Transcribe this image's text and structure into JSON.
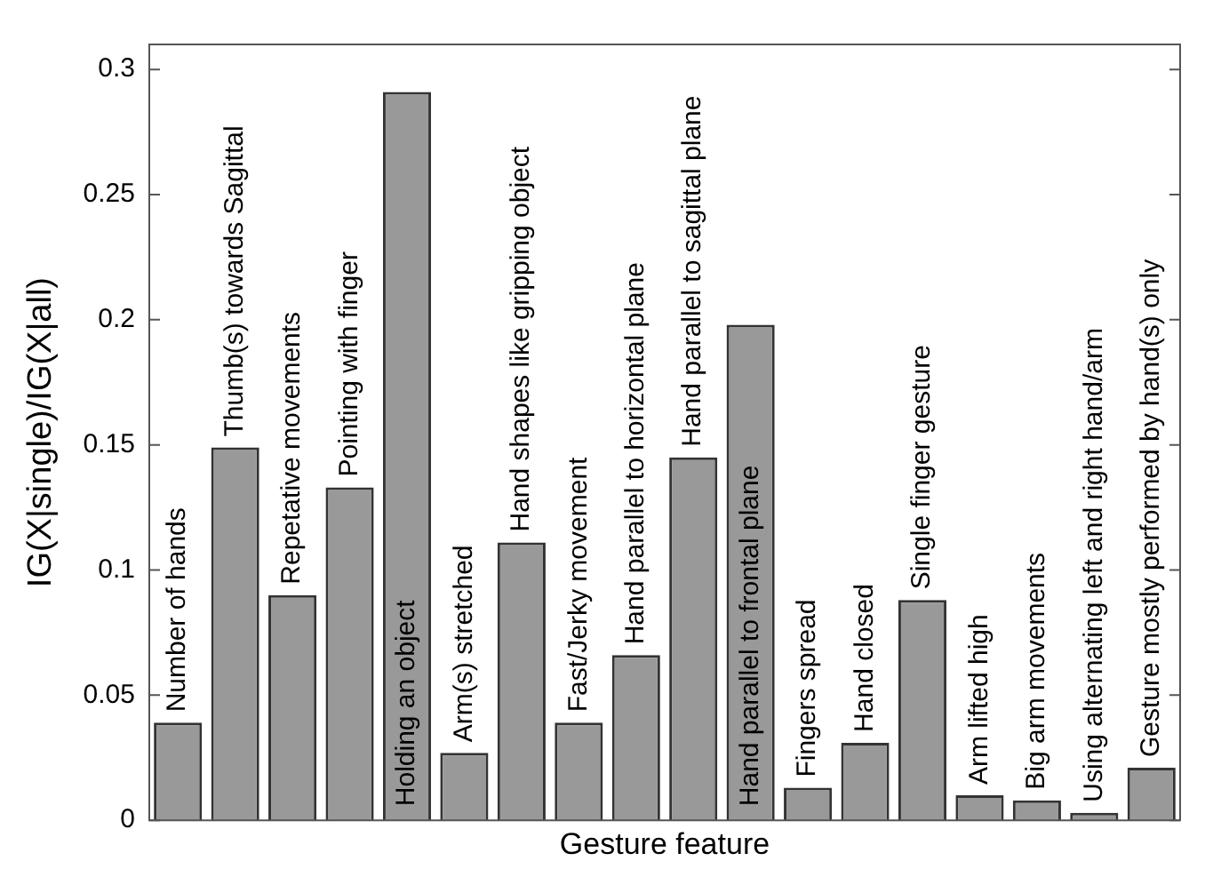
{
  "chart_data": {
    "type": "bar",
    "xlabel": "Gesture feature",
    "ylabel": "IG(X|single)/IG(X|all)",
    "categories": [
      "Number of hands",
      "Thumb(s) towards Sagittal",
      "Repetative movements",
      "Pointing with finger",
      "Holding an object",
      "Arm(s) stretched",
      "Hand shapes like gripping object",
      "Fast/Jerky movement",
      "Hand parallel to horizontal plane",
      "Hand parallel to sagittal plane",
      "Hand parallel to frontal plane",
      "Fingers spread",
      "Hand closed",
      "Single finger gesture",
      "Arm lifted high",
      "Big arm movements",
      "Using alternating left and right hand/arm",
      "Gesture mostly performed by hand(s) only"
    ],
    "values": [
      0.039,
      0.149,
      0.09,
      0.133,
      0.291,
      0.027,
      0.111,
      0.039,
      0.066,
      0.145,
      0.198,
      0.013,
      0.031,
      0.088,
      0.01,
      0.008,
      0.003,
      0.021
    ],
    "color": "#999999",
    "ylim": [
      0,
      0.31
    ],
    "yticks": [
      0,
      0.05,
      0.1,
      0.15,
      0.2,
      0.25,
      0.3
    ],
    "grid": false,
    "legend": false,
    "tick_labels": "y"
  }
}
